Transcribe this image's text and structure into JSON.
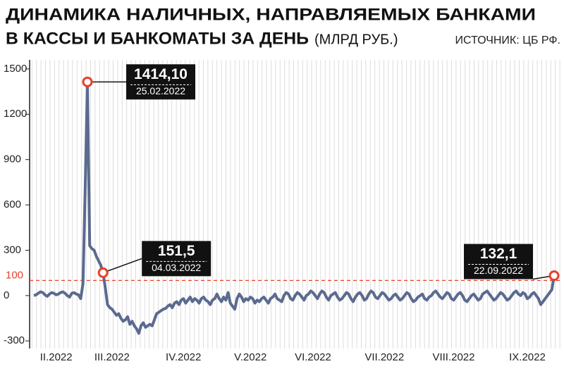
{
  "chart_data": {
    "type": "line",
    "title": [
      "ДИНАМИКА НАЛИЧНЫХ, НАПРАВЛЯЕМЫХ БАНКАМИ",
      "В КАССЫ И БАНКОМАТЫ ЗА ДЕНЬ"
    ],
    "unit": "(МЛРД РУБ.)",
    "source": "ИСТОЧНИК: ЦБ РФ.",
    "categories": [
      null,
      null,
      null,
      null,
      null,
      null,
      null,
      null,
      null,
      null,
      "II.2022",
      null,
      null,
      null,
      null,
      null,
      null,
      null,
      null,
      null,
      null,
      null,
      null,
      null,
      null,
      null,
      null,
      null,
      null,
      null,
      null,
      null,
      null,
      null,
      null,
      "III.2022",
      null,
      null,
      null,
      null,
      null,
      null,
      null,
      null,
      null,
      null,
      null,
      null,
      null,
      null,
      null,
      null,
      null,
      null,
      null,
      null,
      null,
      null,
      null,
      null,
      null,
      null,
      null,
      null,
      null,
      null,
      null,
      "IV.2022",
      null,
      null,
      null,
      null,
      null,
      null,
      null,
      null,
      null,
      null,
      null,
      null,
      null,
      null,
      null,
      null,
      null,
      null,
      null,
      null,
      null,
      null,
      null,
      null,
      null,
      null,
      null,
      null,
      null,
      "V.2022",
      null,
      null,
      null,
      null,
      null,
      null,
      null,
      null,
      null,
      null,
      null,
      null,
      null,
      null,
      null,
      null,
      null,
      null,
      null,
      null,
      null,
      null,
      null,
      null,
      null,
      null,
      null,
      "VI.2022",
      null,
      null,
      null,
      null,
      null,
      null,
      null,
      null,
      null,
      null,
      null,
      null,
      null,
      null,
      null,
      null,
      null,
      null,
      null,
      null,
      null,
      null,
      null,
      null,
      null,
      null,
      null,
      null,
      null,
      null,
      null,
      "VII.2022",
      null,
      null,
      null,
      null,
      null,
      null,
      null,
      null,
      null,
      null,
      null,
      null,
      null,
      null,
      null,
      null,
      null,
      null,
      null,
      null,
      null,
      null,
      null,
      null,
      null,
      null,
      null,
      null,
      null,
      null,
      "VIII.2022",
      null,
      null,
      null,
      null,
      null,
      null,
      null,
      null,
      null,
      null,
      null,
      null,
      null,
      null,
      null,
      null,
      null,
      null,
      null,
      null,
      null,
      null,
      null,
      null,
      null,
      null,
      null,
      null,
      null,
      null,
      null,
      null,
      "IX.2022",
      null,
      null,
      null,
      null,
      null,
      null,
      null,
      null,
      null,
      null,
      null,
      null
    ],
    "series": [
      {
        "color": "#5b6a8f",
        "values": [
          0,
          5,
          15,
          25,
          20,
          5,
          -5,
          10,
          20,
          15,
          5,
          10,
          20,
          25,
          15,
          0,
          -10,
          15,
          20,
          10,
          5,
          -20,
          80,
          700,
          1414.1,
          330,
          310,
          300,
          260,
          230,
          200,
          151.5,
          50,
          -60,
          -80,
          -90,
          -110,
          -130,
          -120,
          -150,
          -170,
          -160,
          -140,
          -190,
          -170,
          -200,
          -220,
          -250,
          -200,
          -180,
          -210,
          -200,
          -190,
          -200,
          -160,
          -120,
          -110,
          -100,
          -90,
          -85,
          -70,
          -60,
          -80,
          -50,
          -40,
          -60,
          -30,
          -20,
          -50,
          -30,
          -10,
          -40,
          -20,
          -30,
          -50,
          -20,
          -10,
          -30,
          -40,
          -60,
          -30,
          -20,
          10,
          -20,
          -40,
          -10,
          -30,
          20,
          -50,
          -70,
          -90,
          -20,
          10,
          -10,
          -40,
          -20,
          -30,
          -10,
          -20,
          -50,
          -30,
          -40,
          -20,
          -10,
          -30,
          -50,
          -20,
          -10,
          10,
          -20,
          -30,
          -40,
          0,
          20,
          10,
          -20,
          -30,
          0,
          20,
          10,
          -10,
          -30,
          0,
          10,
          30,
          20,
          0,
          -20,
          10,
          30,
          20,
          -10,
          -30,
          0,
          10,
          20,
          -10,
          -30,
          -20,
          0,
          20,
          10,
          -20,
          -40,
          -10,
          10,
          20,
          0,
          -30,
          -20,
          10,
          30,
          20,
          -10,
          -20,
          0,
          20,
          10,
          -10,
          -30,
          -20,
          0,
          10,
          -10,
          -30,
          -20,
          0,
          20,
          10,
          -20,
          -40,
          -30,
          -10,
          0,
          10,
          -20,
          -30,
          -10,
          0,
          20,
          30,
          10,
          -10,
          -20,
          0,
          20,
          10,
          -20,
          -30,
          -10,
          10,
          20,
          0,
          -30,
          -40,
          -20,
          0,
          10,
          -10,
          -30,
          -20,
          10,
          20,
          30,
          10,
          -10,
          -30,
          -20,
          0,
          20,
          10,
          -10,
          -30,
          -20,
          0,
          20,
          30,
          10,
          0,
          20,
          10,
          -20,
          -10,
          10,
          20,
          0,
          -20,
          -60,
          -40,
          -20,
          0,
          20,
          40,
          132.1
        ]
      }
    ],
    "ylim": [
      -350,
      1560
    ],
    "yticks": [
      -300,
      0,
      300,
      600,
      900,
      1200,
      1500
    ],
    "ref_line": {
      "value": 100,
      "color": "#e8402a"
    },
    "annotations": [
      {
        "value": 1414.1,
        "label": "1414,10",
        "date": "25.02.2022"
      },
      {
        "value": 151.5,
        "label": "151,5",
        "date": "04.03.2022"
      },
      {
        "value": 132.1,
        "label": "132,1",
        "date": "22.09.2022"
      }
    ],
    "marker_color": "#e8402a"
  }
}
